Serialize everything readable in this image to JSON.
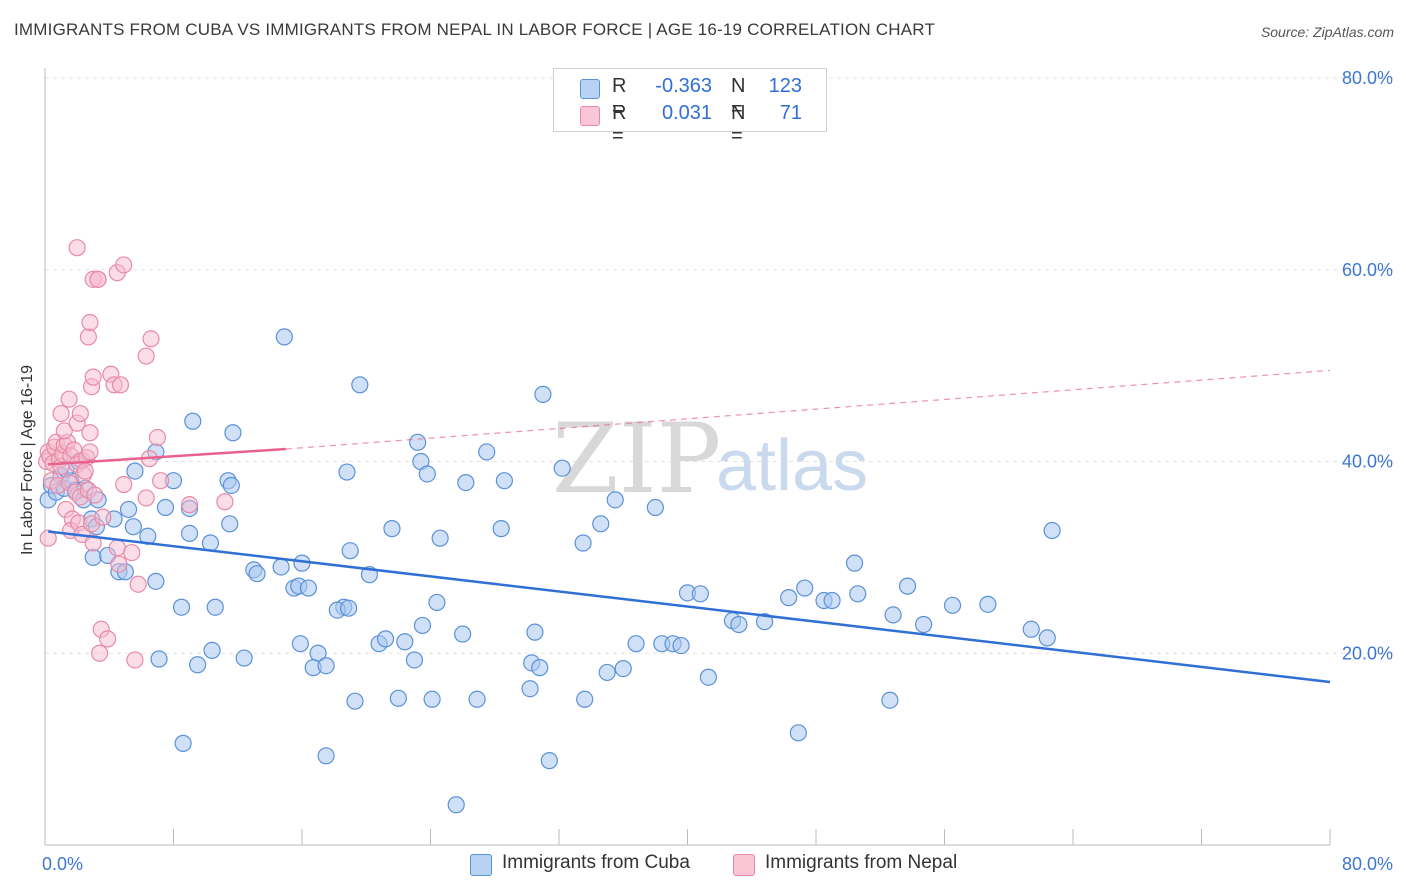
{
  "title": "IMMIGRANTS FROM CUBA VS IMMIGRANTS FROM NEPAL IN LABOR FORCE | AGE 16-19 CORRELATION CHART",
  "source": "Source: ZipAtlas.com",
  "watermark": {
    "zip": "ZIP",
    "atlas": "atlas"
  },
  "legend": {
    "cuba": {
      "r_label": "R =",
      "r_value": "-0.363",
      "n_label": "N =",
      "n_value": "123"
    },
    "nepal": {
      "r_label": "R =",
      "r_value": "0.031",
      "n_label": "N =",
      "n_value": "71"
    }
  },
  "bottom_legend": {
    "cuba": "Immigrants from Cuba",
    "nepal": "Immigrants from Nepal"
  },
  "colors": {
    "cuba_fill": "#a9c8f0",
    "cuba_stroke": "#5b91d8",
    "cuba_line": "#2f6fd6",
    "nepal_fill": "#f6bccd",
    "nepal_stroke": "#e88aa7",
    "nepal_line": "#e8628c",
    "axis_text": "#3d76d3",
    "grid": "#e3e3e3"
  },
  "chart_data": {
    "type": "scatter",
    "title": "IMMIGRANTS FROM CUBA VS IMMIGRANTS FROM NEPAL IN LABOR FORCE | AGE 16-19 CORRELATION CHART",
    "xlabel": "",
    "ylabel": "In Labor Force | Age 16-19",
    "xlim": [
      0,
      80
    ],
    "ylim": [
      0,
      80
    ],
    "x_tick_labels": [
      "0.0%",
      "80.0%"
    ],
    "y_tick_labels": [
      "20.0%",
      "40.0%",
      "60.0%",
      "80.0%"
    ],
    "y_ticks": [
      20,
      40,
      60,
      80
    ],
    "grid": true,
    "series": [
      {
        "name": "Immigrants from Cuba",
        "r": -0.363,
        "n": 123,
        "trend": {
          "x": [
            0.2,
            80
          ],
          "y": [
            32.7,
            17.0
          ]
        },
        "points": [
          [
            0.2,
            36.0
          ],
          [
            0.4,
            37.5
          ],
          [
            0.7,
            36.8
          ],
          [
            1.0,
            38.5
          ],
          [
            1.2,
            37.2
          ],
          [
            1.6,
            38.0
          ],
          [
            1.9,
            37.0
          ],
          [
            2.4,
            36.0
          ],
          [
            2.9,
            34.0
          ],
          [
            3.2,
            33.2
          ],
          [
            3.0,
            30.0
          ],
          [
            4.3,
            34.0
          ],
          [
            3.9,
            30.2
          ],
          [
            4.6,
            28.5
          ],
          [
            5.5,
            33.2
          ],
          [
            5.2,
            35.0
          ],
          [
            5.0,
            28.5
          ],
          [
            6.4,
            32.2
          ],
          [
            7.5,
            35.2
          ],
          [
            9.0,
            35.1
          ],
          [
            5.6,
            39.0
          ],
          [
            6.9,
            41.0
          ],
          [
            8.0,
            38.0
          ],
          [
            9.2,
            44.2
          ],
          [
            11.7,
            43.0
          ],
          [
            11.4,
            38.0
          ],
          [
            11.6,
            37.5
          ],
          [
            11.5,
            33.5
          ],
          [
            9.0,
            32.5
          ],
          [
            10.3,
            31.5
          ],
          [
            6.9,
            27.5
          ],
          [
            8.5,
            24.8
          ],
          [
            10.6,
            24.8
          ],
          [
            13.0,
            28.7
          ],
          [
            13.2,
            28.3
          ],
          [
            14.7,
            29.0
          ],
          [
            15.5,
            26.8
          ],
          [
            15.8,
            27.0
          ],
          [
            16.0,
            29.4
          ],
          [
            16.4,
            26.8
          ],
          [
            19.0,
            30.7
          ],
          [
            20.2,
            28.2
          ],
          [
            18.6,
            24.8
          ],
          [
            18.2,
            24.5
          ],
          [
            18.9,
            24.7
          ],
          [
            15.9,
            21.0
          ],
          [
            17.0,
            20.0
          ],
          [
            16.7,
            18.5
          ],
          [
            17.5,
            18.7
          ],
          [
            20.8,
            21.0
          ],
          [
            21.2,
            21.5
          ],
          [
            22.4,
            21.2
          ],
          [
            23.0,
            19.3
          ],
          [
            23.5,
            22.9
          ],
          [
            24.4,
            25.3
          ],
          [
            26.0,
            22.0
          ],
          [
            26.9,
            15.2
          ],
          [
            24.1,
            15.2
          ],
          [
            22.0,
            15.3
          ],
          [
            19.3,
            15.0
          ],
          [
            14.9,
            53.0
          ],
          [
            19.6,
            48.0
          ],
          [
            23.2,
            42.0
          ],
          [
            23.4,
            40.0
          ],
          [
            23.8,
            38.7
          ],
          [
            26.2,
            37.8
          ],
          [
            28.6,
            38.0
          ],
          [
            27.5,
            41.0
          ],
          [
            21.6,
            33.0
          ],
          [
            24.6,
            32.0
          ],
          [
            18.8,
            38.9
          ],
          [
            28.4,
            33.0
          ],
          [
            31.0,
            47.0
          ],
          [
            32.2,
            39.3
          ],
          [
            34.6,
            33.5
          ],
          [
            33.5,
            31.5
          ],
          [
            35.5,
            36.0
          ],
          [
            38.0,
            35.2
          ],
          [
            30.5,
            22.2
          ],
          [
            30.3,
            19.0
          ],
          [
            30.8,
            18.5
          ],
          [
            30.2,
            16.3
          ],
          [
            33.6,
            15.2
          ],
          [
            35.0,
            18.0
          ],
          [
            36.0,
            18.4
          ],
          [
            36.8,
            21.0
          ],
          [
            38.4,
            21.0
          ],
          [
            39.1,
            21.0
          ],
          [
            39.6,
            20.8
          ],
          [
            40.0,
            26.3
          ],
          [
            40.8,
            26.2
          ],
          [
            41.3,
            17.5
          ],
          [
            42.8,
            23.4
          ],
          [
            43.2,
            23.0
          ],
          [
            44.8,
            23.3
          ],
          [
            46.3,
            25.8
          ],
          [
            47.3,
            26.8
          ],
          [
            48.5,
            25.5
          ],
          [
            49.0,
            25.5
          ],
          [
            50.4,
            29.4
          ],
          [
            50.6,
            26.2
          ],
          [
            52.8,
            24.0
          ],
          [
            53.7,
            27.0
          ],
          [
            54.7,
            23.0
          ],
          [
            56.5,
            25.0
          ],
          [
            58.7,
            25.1
          ],
          [
            61.4,
            22.5
          ],
          [
            62.4,
            21.6
          ],
          [
            62.7,
            32.8
          ],
          [
            52.6,
            15.1
          ],
          [
            46.9,
            11.7
          ],
          [
            31.4,
            8.8
          ],
          [
            25.6,
            4.2
          ],
          [
            17.5,
            9.3
          ],
          [
            8.6,
            10.6
          ],
          [
            7.1,
            19.4
          ],
          [
            9.5,
            18.8
          ],
          [
            10.4,
            20.3
          ],
          [
            12.4,
            19.5
          ],
          [
            3.3,
            36.0
          ],
          [
            2.5,
            37.2
          ],
          [
            1.3,
            39.2
          ],
          [
            2.1,
            40.0
          ]
        ]
      },
      {
        "name": "Immigrants from Nepal",
        "r": 0.031,
        "n": 71,
        "trend": {
          "x": [
            0.2,
            15.0
          ],
          "y": [
            39.7,
            41.3
          ],
          "dashed_to": [
            80,
            49.5
          ]
        },
        "points": [
          [
            0.1,
            40.0
          ],
          [
            0.2,
            41.0
          ],
          [
            0.3,
            40.5
          ],
          [
            0.5,
            39.8
          ],
          [
            0.6,
            41.5
          ],
          [
            0.7,
            42.0
          ],
          [
            0.9,
            40.2
          ],
          [
            1.0,
            39.5
          ],
          [
            1.1,
            40.8
          ],
          [
            1.2,
            41.7
          ],
          [
            1.4,
            42.0
          ],
          [
            1.6,
            40.6
          ],
          [
            1.8,
            41.2
          ],
          [
            2.0,
            39.7
          ],
          [
            2.3,
            40.1
          ],
          [
            2.6,
            40.4
          ],
          [
            2.8,
            41.0
          ],
          [
            0.4,
            38.0
          ],
          [
            0.8,
            37.5
          ],
          [
            1.5,
            37.8
          ],
          [
            1.9,
            36.8
          ],
          [
            2.2,
            36.3
          ],
          [
            2.4,
            38.6
          ],
          [
            2.7,
            37.0
          ],
          [
            3.1,
            36.5
          ],
          [
            1.3,
            35.0
          ],
          [
            1.7,
            34.0
          ],
          [
            1.6,
            32.8
          ],
          [
            2.1,
            33.6
          ],
          [
            2.3,
            32.4
          ],
          [
            2.9,
            33.5
          ],
          [
            3.6,
            34.2
          ],
          [
            0.2,
            32.0
          ],
          [
            4.5,
            31.0
          ],
          [
            4.6,
            29.3
          ],
          [
            5.4,
            30.5
          ],
          [
            5.8,
            27.2
          ],
          [
            3.0,
            31.5
          ],
          [
            1.2,
            43.2
          ],
          [
            1.0,
            45.0
          ],
          [
            1.5,
            46.5
          ],
          [
            2.0,
            44.0
          ],
          [
            2.2,
            45.0
          ],
          [
            2.8,
            43.0
          ],
          [
            2.9,
            47.8
          ],
          [
            3.0,
            48.8
          ],
          [
            4.1,
            49.1
          ],
          [
            4.3,
            48.0
          ],
          [
            4.7,
            48.0
          ],
          [
            6.3,
            51.0
          ],
          [
            6.6,
            52.8
          ],
          [
            2.7,
            53.0
          ],
          [
            2.8,
            54.5
          ],
          [
            3.0,
            59.0
          ],
          [
            3.3,
            59.0
          ],
          [
            2.0,
            62.3
          ],
          [
            3.3,
            59.0
          ],
          [
            4.5,
            59.7
          ],
          [
            4.9,
            60.5
          ],
          [
            6.3,
            36.2
          ],
          [
            7.2,
            38.0
          ],
          [
            7.0,
            42.5
          ],
          [
            6.5,
            40.3
          ],
          [
            9.0,
            35.5
          ],
          [
            11.2,
            35.8
          ],
          [
            4.9,
            37.6
          ],
          [
            3.5,
            22.5
          ],
          [
            3.4,
            20.0
          ],
          [
            3.9,
            21.5
          ],
          [
            5.6,
            19.3
          ],
          [
            2.5,
            39.0
          ]
        ]
      }
    ]
  }
}
